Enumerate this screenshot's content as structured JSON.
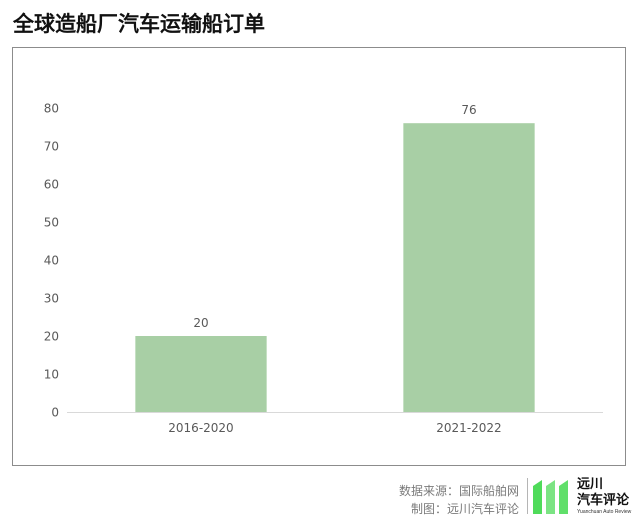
{
  "title": "全球造船厂汽车运输船订单",
  "chart_data": {
    "type": "bar",
    "categories": [
      "2016-2020",
      "2021-2022"
    ],
    "values": [
      20,
      76
    ],
    "data_labels": [
      "20",
      "76"
    ],
    "ylim": [
      0,
      80
    ],
    "yticks": [
      0,
      10,
      20,
      30,
      40,
      50,
      60,
      70,
      80
    ],
    "grid": false,
    "bar_color": "#a8cfa5",
    "title": "",
    "xlabel": "",
    "ylabel": ""
  },
  "footer": {
    "source": "数据来源：国际船舶网",
    "credit": "制图：远川汽车评论"
  },
  "logo": {
    "name_line1": "远川",
    "name_line2": "汽车评论",
    "subtitle": "Yuanchuan Auto Review",
    "accent_color": "#4fdb5a"
  }
}
